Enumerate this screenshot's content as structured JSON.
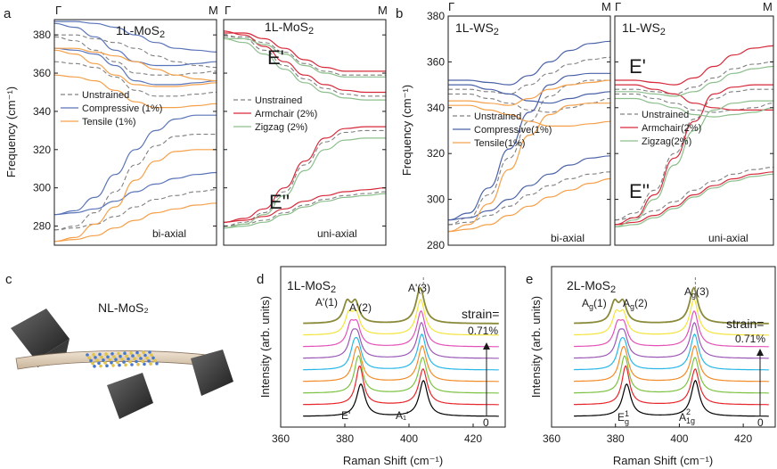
{
  "panel_labels": {
    "a": "a",
    "b": "b",
    "c": "c",
    "d": "d",
    "e": "e"
  },
  "chart_data": [
    {
      "type": "line",
      "id": "a-left",
      "title": "1L-MoS2",
      "xticks": [
        "Γ",
        "M"
      ],
      "ylabel": "Frequency (cm⁻¹)",
      "ylim": [
        270,
        388
      ],
      "yticks": [
        280,
        300,
        320,
        340,
        360,
        380
      ],
      "annotation": "bi-axial",
      "legend": [
        "Unstrained",
        "Compressive (1%)",
        "Tensile (1%)"
      ],
      "series": [
        {
          "name": "Unstrained",
          "color": "#808080",
          "dash": true,
          "curves": [
            [
              380,
              380,
              378,
              376,
              373,
              369,
              366,
              364,
              363
            ],
            [
              379,
              377,
              372,
              366,
              360,
              359,
              359,
              360,
              361
            ],
            [
              366,
              365,
              363,
              358,
              351,
              348,
              348,
              349,
              350
            ],
            [
              278,
              280,
              287,
              298,
              312,
              322,
              327,
              328,
              328
            ],
            [
              278,
              279,
              281,
              285,
              290,
              294,
              296,
              298,
              299
            ]
          ]
        },
        {
          "name": "Compressive (1%)",
          "color": "#5a74b8",
          "dash": false,
          "curves": [
            [
              387,
              387,
              386,
              384,
              380,
              376,
              373,
              372,
              371
            ],
            [
              386,
              384,
              379,
              372,
              366,
              364,
              364,
              365,
              366
            ],
            [
              373,
              372,
              370,
              364,
              356,
              354,
              354,
              355,
              356
            ],
            [
              286,
              288,
              295,
              307,
              320,
              330,
              336,
              338,
              338
            ],
            [
              286,
              287,
              289,
              293,
              298,
              302,
              305,
              307,
              308
            ]
          ]
        },
        {
          "name": "Tensile (1%)",
          "color": "#f5a04a",
          "dash": false,
          "curves": [
            [
              373,
              373,
              371,
              369,
              366,
              362,
              359,
              357,
              356
            ],
            [
              372,
              370,
              365,
              359,
              354,
              353,
              353,
              354,
              355
            ],
            [
              359,
              358,
              356,
              351,
              345,
              342,
              342,
              343,
              344
            ],
            [
              272,
              274,
              281,
              290,
              304,
              314,
              319,
              320,
              320
            ],
            [
              272,
              273,
              275,
              279,
              283,
              287,
              289,
              291,
              292
            ]
          ]
        }
      ]
    },
    {
      "type": "line",
      "id": "a-right",
      "title": "1L-MoS2",
      "xticks": [
        "Γ",
        "M"
      ],
      "ylim": [
        270,
        388
      ],
      "yticks": [
        280,
        300,
        320,
        340,
        360,
        380
      ],
      "annotation": "uni-axial",
      "mode_labels": [
        "E'",
        "E''"
      ],
      "legend": [
        "Unstrained",
        "Armchair (2%)",
        "Zigzag (2%)"
      ],
      "series": [
        {
          "name": "Unstrained",
          "color": "#808080",
          "dash": true,
          "curves": [
            [
              379,
              379,
              376,
              371,
              365,
              361,
              359,
              359,
              359
            ],
            [
              380,
              378,
              372,
              364,
              357,
              352,
              349,
              348,
              348
            ],
            [
              280,
              282,
              287,
              298,
              312,
              324,
              329,
              330,
              330
            ],
            [
              280,
              281,
              283,
              287,
              291,
              294,
              296,
              297,
              298
            ]
          ]
        },
        {
          "name": "Armchair (2%)",
          "color": "#d6293a",
          "dash": false,
          "curves": [
            [
              381,
              381,
              378,
              373,
              367,
              363,
              361,
              361,
              361
            ],
            [
              382,
              380,
              374,
              366,
              359,
              354,
              351,
              350,
              350
            ],
            [
              282,
              284,
              289,
              300,
              314,
              326,
              331,
              332,
              332
            ],
            [
              282,
              283,
              285,
              289,
              293,
              296,
              298,
              299,
              300
            ]
          ]
        },
        {
          "name": "Zigzag (2%)",
          "color": "#8cbf8c",
          "dash": false,
          "curves": [
            [
              378,
              378,
              375,
              370,
              364,
              360,
              358,
              358,
              358
            ],
            [
              378,
              376,
              370,
              362,
              355,
              350,
              347,
              346,
              346
            ],
            [
              279,
              281,
              286,
              296,
              309,
              320,
              325,
              326,
              326
            ],
            [
              279,
              280,
              282,
              286,
              290,
              293,
              295,
              296,
              297
            ]
          ]
        }
      ]
    },
    {
      "type": "line",
      "id": "b-left",
      "title": "1L-WS2",
      "xticks": [
        "Γ",
        "M"
      ],
      "ylabel": "Frequency (cm⁻¹)",
      "ylim": [
        280,
        380
      ],
      "yticks": [
        280,
        300,
        320,
        340,
        360,
        380
      ],
      "annotation": "bi-axial",
      "legend": [
        "Unstrained",
        "Compressive(1%)",
        "Tensile(1%)"
      ],
      "series": [
        {
          "name": "Unstrained",
          "color": "#808080",
          "dash": true,
          "curves": [
            [
              348,
              348,
              347,
              346,
              350,
              355,
              359,
              361,
              362
            ],
            [
              346,
              346,
              344,
              342,
              339,
              338,
              340,
              342,
              344
            ],
            [
              289,
              292,
              302,
              318,
              334,
              345,
              350,
              352,
              352
            ],
            [
              289,
              290,
              293,
              297,
              302,
              306,
              309,
              311,
              312
            ]
          ]
        },
        {
          "name": "Compressive(1%)",
          "color": "#4a62a8",
          "dash": false,
          "curves": [
            [
              352,
              352,
              351,
              350,
              354,
              360,
              365,
              368,
              369
            ],
            [
              350,
              350,
              348,
              346,
              343,
              342,
              344,
              346,
              347
            ],
            [
              291,
              294,
              305,
              322,
              338,
              350,
              354,
              355,
              355
            ],
            [
              291,
              292,
              295,
              300,
              306,
              311,
              315,
              318,
              319
            ]
          ]
        },
        {
          "name": "Tensile(1%)",
          "color": "#f5a04a",
          "dash": false,
          "curves": [
            [
              343,
              343,
              342,
              341,
              344,
              348,
              350,
              351,
              352
            ],
            [
              341,
              341,
              339,
              337,
              334,
              332,
              332,
              333,
              334
            ],
            [
              286,
              289,
              298,
              313,
              328,
              337,
              341,
              342,
              342
            ],
            [
              286,
              287,
              289,
              293,
              297,
              301,
              304,
              307,
              309
            ]
          ]
        }
      ]
    },
    {
      "type": "line",
      "id": "b-right",
      "title": "1L-WS2",
      "xticks": [
        "Γ",
        "M"
      ],
      "ylim": [
        280,
        380
      ],
      "yticks": [
        280,
        300,
        320,
        340,
        360,
        380
      ],
      "annotation": "uni-axial",
      "mode_labels": [
        "E'",
        "E''"
      ],
      "legend": [
        "Unstrained",
        "Armchair(2%)",
        "Zigzag(2%)"
      ],
      "series": [
        {
          "name": "Unstrained",
          "color": "#808080",
          "dash": true,
          "curves": [
            [
              348,
              348,
              347,
              346,
              349,
              353,
              357,
              359,
              360
            ],
            [
              346,
              346,
              344,
              342,
              339,
              338,
              339,
              340,
              342
            ],
            [
              291,
              294,
              304,
              320,
              335,
              344,
              347,
              348,
              348
            ],
            [
              291,
              292,
              295,
              299,
              304,
              308,
              311,
              313,
              314
            ]
          ]
        },
        {
          "name": "Armchair(2%)",
          "color": "#d6293a",
          "dash": false,
          "curves": [
            [
              352,
              352,
              351,
              350,
              353,
              358,
              363,
              366,
              367
            ],
            [
              350,
              350,
              348,
              346,
              342,
              340,
              339,
              339,
              339
            ],
            [
              289,
              292,
              302,
              318,
              334,
              346,
              349,
              350,
              350
            ],
            [
              289,
              290,
              293,
              297,
              302,
              306,
              309,
              311,
              312
            ]
          ]
        },
        {
          "name": "Zigzag(2%)",
          "color": "#8cbf8c",
          "dash": false,
          "curves": [
            [
              347,
              347,
              346,
              345,
              347,
              351,
              355,
              357,
              358
            ],
            [
              344,
              344,
              342,
              340,
              337,
              336,
              337,
              338,
              340
            ],
            [
              288,
              291,
              300,
              315,
              330,
              339,
              342,
              343,
              343
            ],
            [
              288,
              289,
              292,
              296,
              301,
              305,
              308,
              310,
              311
            ]
          ]
        }
      ]
    },
    {
      "type": "line",
      "id": "d",
      "title": "1L-MoS2",
      "xlabel": "Raman Shift (cm⁻¹)",
      "ylabel": "Intensity (arb. units)",
      "xlim": [
        360,
        430
      ],
      "xticks": [
        360,
        380,
        400,
        420
      ],
      "peaks_unstrained": [
        385,
        404.5
      ],
      "peak_shift_max": [
        -3,
        -1
      ],
      "peak_labels_top": [
        "A'(1)",
        "A'(2)",
        "A'(3)"
      ],
      "peak_labels_bottom": [
        "E'",
        "A₁'"
      ],
      "strain_label": "strain=",
      "strain_value": "0.71%",
      "strain_min": "0",
      "spectra_colors": [
        "#000000",
        "#e8262b",
        "#7cc242",
        "#f28c28",
        "#29b7e6",
        "#9b59b6",
        "#e352b8",
        "#f2e43a",
        "#8a8a3a"
      ]
    },
    {
      "type": "line",
      "id": "e",
      "title": "2L-MoS2",
      "xlabel": "Raman Shift (cm⁻¹)",
      "ylabel": "Intensity (arb. units)",
      "xlim": [
        360,
        430
      ],
      "xticks": [
        360,
        380,
        400,
        420
      ],
      "peaks_unstrained": [
        383.5,
        405
      ],
      "peak_shift_max": [
        -2.5,
        -0.5
      ],
      "peak_labels_top": [
        "Ag(1)",
        "Ag(2)",
        "Ag(3)"
      ],
      "peak_labels_bottom": [
        "E¹g",
        "A₁g²"
      ],
      "strain_label": "strain=",
      "strain_value": "0.71%",
      "strain_min": "0",
      "spectra_colors": [
        "#000000",
        "#e8262b",
        "#7cc242",
        "#f28c28",
        "#29b7e6",
        "#9b59b6",
        "#e352b8",
        "#f2e43a",
        "#8a8a3a"
      ]
    }
  ],
  "panel_c": {
    "label": "NL-MoS₂"
  }
}
